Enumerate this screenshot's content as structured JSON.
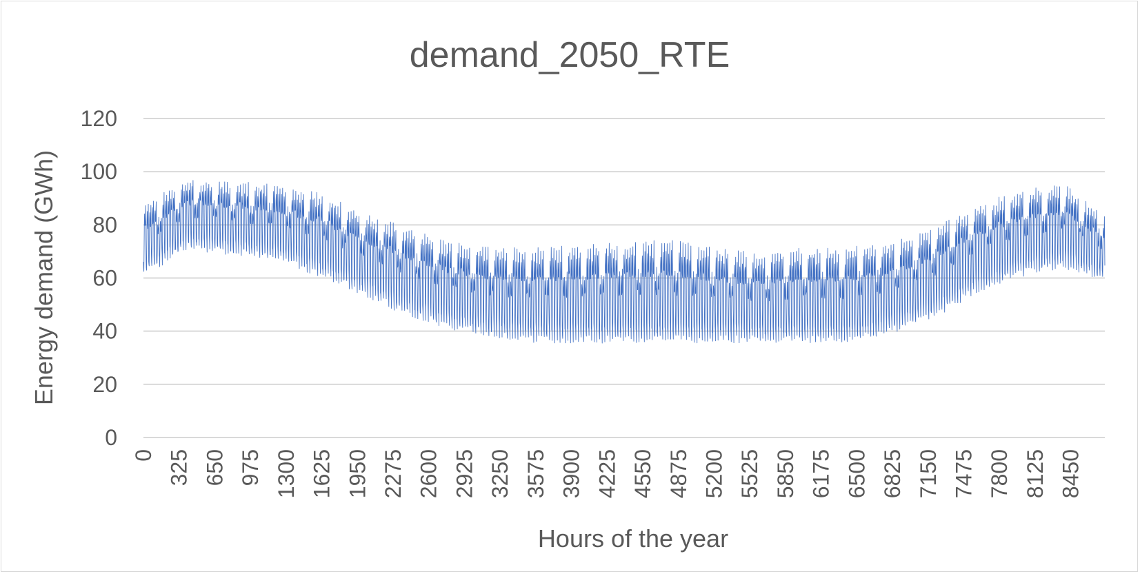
{
  "chart_data": {
    "type": "line",
    "title": "demand_2050_RTE",
    "xlabel": "Hours of the year",
    "ylabel": "Energy demand (GWh)",
    "ylim": [
      0,
      120
    ],
    "xlim": [
      0,
      8760
    ],
    "y_ticks": [
      "0",
      "20",
      "40",
      "60",
      "80",
      "100",
      "120"
    ],
    "x_ticks": [
      "0",
      "325",
      "650",
      "975",
      "1300",
      "1625",
      "1950",
      "2275",
      "2600",
      "2925",
      "3250",
      "3575",
      "3900",
      "4225",
      "4550",
      "4875",
      "5200",
      "5525",
      "5850",
      "6175",
      "6500",
      "6825",
      "7150",
      "7475",
      "7800",
      "8125",
      "8450"
    ],
    "grid": true,
    "legend": "none",
    "series_color": "#4472c4",
    "envelope": {
      "hours": [
        0,
        400,
        800,
        1200,
        1600,
        2000,
        2400,
        2800,
        3200,
        3600,
        4000,
        4400,
        4800,
        5200,
        5600,
        6000,
        6400,
        6800,
        7200,
        7600,
        8000,
        8400,
        8760
      ],
      "daily_max": [
        86,
        96,
        95,
        94,
        91,
        83,
        78,
        72,
        70,
        70,
        71,
        72,
        73,
        70,
        68,
        70,
        70,
        72,
        78,
        86,
        92,
        94,
        82
      ],
      "daily_min": [
        62,
        72,
        70,
        68,
        62,
        55,
        47,
        42,
        39,
        37,
        37,
        37,
        37,
        37,
        37,
        37,
        37,
        40,
        46,
        56,
        62,
        65,
        60
      ]
    }
  }
}
